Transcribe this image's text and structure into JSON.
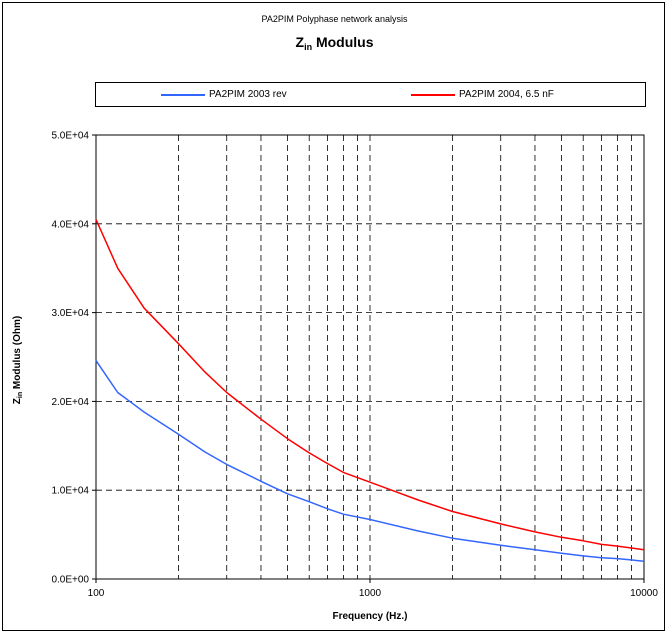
{
  "header": {
    "supertitle": "PA2PIM Polyphase network analysis",
    "title_main": "Z",
    "title_sub": "in",
    "title_rest": " Modulus"
  },
  "chart_data": {
    "type": "line",
    "x_scale": "log",
    "xlim": [
      100,
      10000
    ],
    "ylim": [
      0,
      50000
    ],
    "xticks": [
      100,
      1000,
      10000
    ],
    "xtick_labels": [
      "100",
      "1000",
      "10000"
    ],
    "yticks": [
      0,
      10000,
      20000,
      30000,
      40000,
      50000
    ],
    "ytick_labels": [
      "0.0E+00",
      "1.0E+04",
      "2.0E+04",
      "3.0E+04",
      "4.0E+04",
      "5.0E+04"
    ],
    "xlabel": "Frequency (Hz.)",
    "ylabel_main": "Z",
    "ylabel_sub": "in",
    "ylabel_rest": " Modulus (Ohm)",
    "grid": true,
    "legend_position": "top",
    "series": [
      {
        "name": "PA2PIM 2003 rev",
        "color": "#3366ff",
        "x": [
          100,
          120,
          150,
          200,
          250,
          300,
          400,
          500,
          600,
          700,
          800,
          1000,
          1500,
          2000,
          3000,
          4000,
          5000,
          6000,
          7000,
          8000,
          10000
        ],
        "y": [
          24600,
          21000,
          18800,
          16300,
          14300,
          12900,
          11000,
          9600,
          8700,
          7900,
          7300,
          6700,
          5400,
          4600,
          3800,
          3300,
          2900,
          2600,
          2400,
          2300,
          2000
        ]
      },
      {
        "name": "PA2PIM 2004, 6.5 nF",
        "color": "#ff0000",
        "x": [
          100,
          120,
          150,
          200,
          250,
          300,
          400,
          500,
          600,
          700,
          800,
          1000,
          1500,
          2000,
          3000,
          4000,
          5000,
          6000,
          7000,
          8000,
          10000
        ],
        "y": [
          40500,
          35000,
          30500,
          26500,
          23300,
          21000,
          18000,
          15800,
          14200,
          13000,
          12000,
          10900,
          8900,
          7600,
          6200,
          5300,
          4700,
          4300,
          3900,
          3700,
          3300
        ]
      }
    ]
  }
}
